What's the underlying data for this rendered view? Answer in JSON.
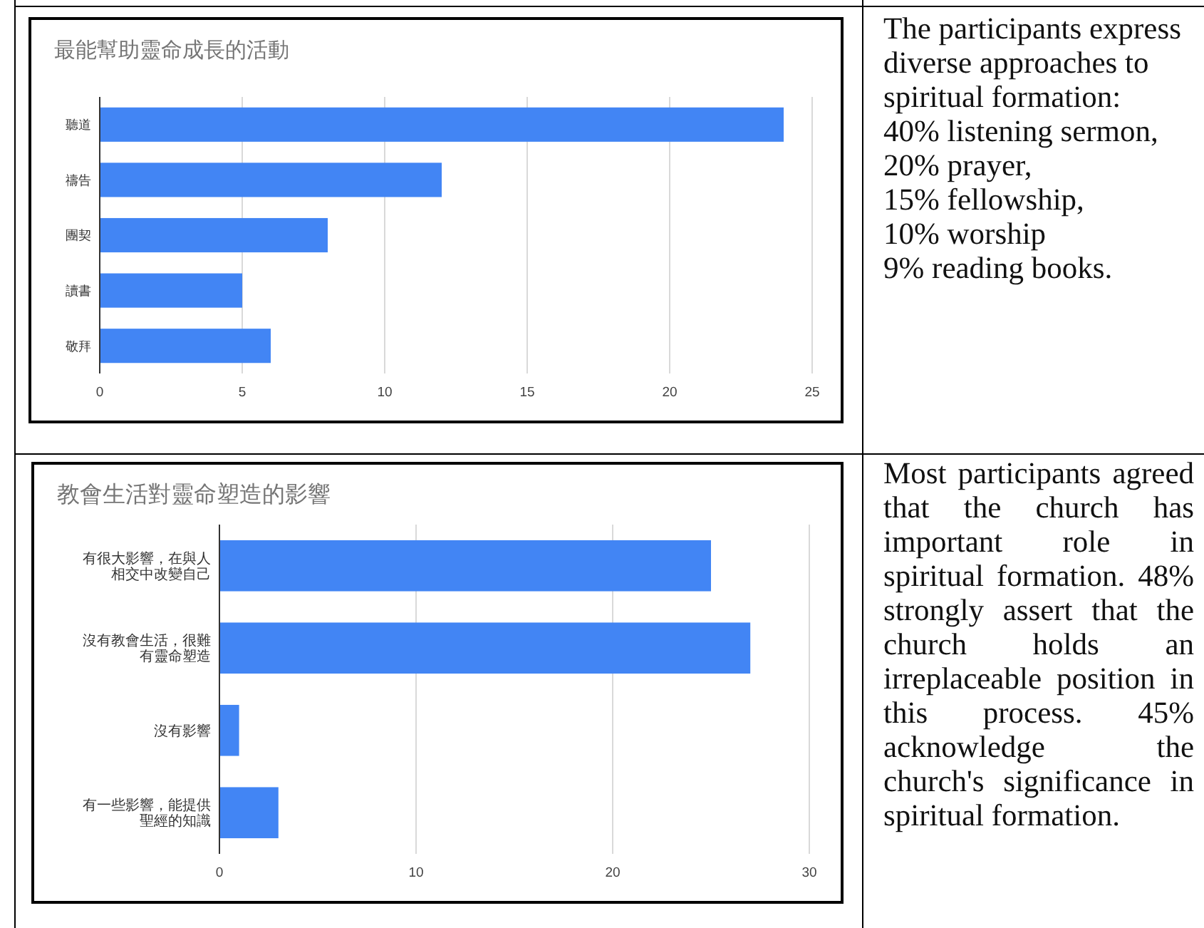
{
  "chart_data": [
    {
      "type": "bar",
      "orientation": "horizontal",
      "title": "最能幫助靈命成長的活動",
      "categories": [
        "聽道",
        "禱告",
        "團契",
        "讀書",
        "敬拜"
      ],
      "values": [
        24,
        12,
        8,
        5,
        6
      ],
      "color": "#4285f4",
      "xlim": [
        0,
        25
      ],
      "xticks": [
        0,
        5,
        10,
        15,
        20,
        25
      ],
      "grid": "x"
    },
    {
      "type": "other",
      "annotations": [
        "The participants express diverse approaches to spiritual formation:",
        "40% listening sermon,",
        "20% prayer,",
        "15% fellowship,",
        "10% worship",
        "9% reading books."
      ]
    },
    {
      "type": "bar",
      "orientation": "horizontal",
      "title": "教會生活對靈命塑造的影響",
      "categories": [
        "有很大影響，在與人相交中改變自己",
        "沒有教會生活，很難有靈命塑造",
        "沒有影響",
        "有一些影響，能提供聖經的知識"
      ],
      "values": [
        25,
        27,
        1,
        3
      ],
      "color": "#4285f4",
      "xlim": [
        0,
        30
      ],
      "xticks": [
        0,
        10,
        20,
        30
      ],
      "grid": "x"
    },
    {
      "type": "other",
      "annotations": [
        "Most participants agreed that the church has important role in spiritual formation. 48% strongly assert that the church holds an irreplaceable position in this process. 45% acknowledge the church's significance in spiritual formation."
      ]
    }
  ]
}
